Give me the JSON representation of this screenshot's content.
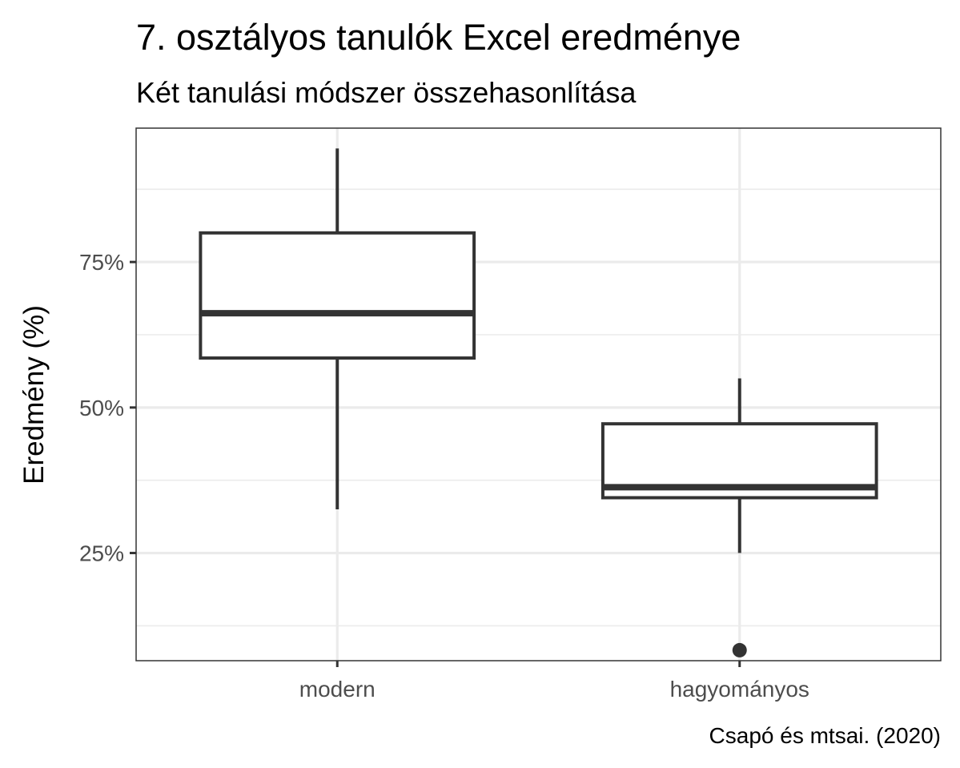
{
  "chart_data": {
    "type": "boxplot",
    "title": "7. osztályos tanulók Excel eredménye",
    "subtitle": "Két tanulási módszer összehasonlítása",
    "xlabel": "",
    "ylabel": "Eredmény (%)",
    "caption": "Csapó és mtsai. (2020)",
    "ylim": [
      6.5,
      98
    ],
    "yticks": [
      25,
      50,
      75
    ],
    "ytick_labels": [
      "25%",
      "50%",
      "75%"
    ],
    "y_minor_ticks": [
      12.5,
      37.5,
      62.5,
      87.5
    ],
    "grid": true,
    "legend": "none",
    "categories": [
      "modern",
      "hagyományos"
    ],
    "boxes": [
      {
        "category": "modern",
        "whisker_low": 32.5,
        "q1": 58.5,
        "median": 66.2,
        "q3": 80.0,
        "whisker_high": 94.5,
        "outliers": []
      },
      {
        "category": "hagyományos",
        "whisker_low": 25.0,
        "q1": 34.5,
        "median": 36.3,
        "q3": 47.2,
        "whisker_high": 55.0,
        "outliers": [
          8.3
        ]
      }
    ],
    "colors": {
      "box_stroke": "#333333",
      "box_fill": "#ffffff",
      "grid": "#ebebeb",
      "panel_border": "#333333",
      "tick_text": "#4d4d4d"
    }
  }
}
